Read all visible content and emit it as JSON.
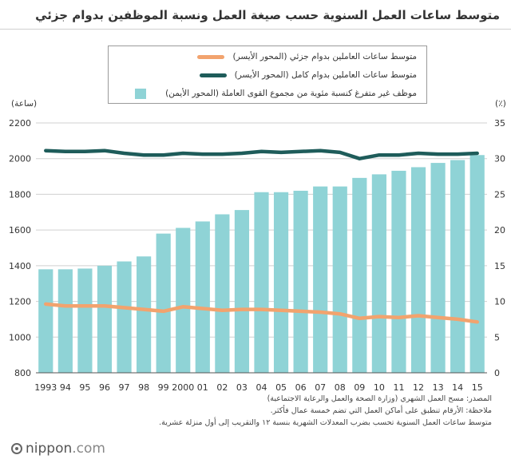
{
  "title": "متوسط ساعات العمل السنوية حسب صيغة العمل ونسبة الموظفين بدوام جزئي",
  "legend": {
    "part_time": "متوسط ساعات العاملين بدوام جزئي (المحور الأيسر)",
    "full_time": "متوسط ساعات العاملين بدوام كامل (المحور الأيسر)",
    "ratio": "موظف غير متفرغ كنسبة مئوية من مجموع القوى العاملة (المحور الأيمن)"
  },
  "units": {
    "left": "(ساعة)",
    "right": "(٪)"
  },
  "notes": {
    "source": "المصدر: مسح العمل الشهري (وزارة الصحة والعمل والرعاية الاجتماعية)",
    "note1": "ملاحظة: الأرقام تنطبق على أماكن العمل التي تضم خمسة عمال فأكثر.",
    "note2": "متوسط ساعات العمل السنوية تحسب بضرب المعدلات الشهرية بنسبة ١٢ والتقريب إلى أول منزلة عشرية."
  },
  "logo": {
    "name": "nippon",
    "suffix": ".com"
  },
  "colors": {
    "part_time": "#f2a36e",
    "full_time": "#1e5c5a",
    "ratio": "#8fd3d6",
    "grid": "#d0d0d0"
  },
  "chart_data": {
    "type": "bar",
    "categories": [
      "1993",
      "94",
      "95",
      "96",
      "97",
      "98",
      "99",
      "2000",
      "01",
      "02",
      "03",
      "04",
      "05",
      "06",
      "07",
      "08",
      "09",
      "10",
      "11",
      "12",
      "13",
      "14",
      "15"
    ],
    "ylim_left": [
      800,
      2200
    ],
    "ylim_right": [
      0,
      35
    ],
    "yticks_left": [
      800,
      1000,
      1200,
      1400,
      1600,
      1800,
      2000,
      2200
    ],
    "yticks_right": [
      0,
      5,
      10,
      15,
      20,
      25,
      30,
      35
    ],
    "grid": true,
    "series": [
      {
        "name": "موظف غير متفرغ كنسبة مئوية من مجموع القوى العاملة (المحور الأيمن)",
        "kind": "bar",
        "axis": "right",
        "values": [
          14.5,
          14.5,
          14.6,
          15.0,
          15.6,
          16.3,
          19.5,
          20.3,
          21.2,
          22.2,
          22.8,
          25.3,
          25.3,
          25.5,
          26.1,
          26.1,
          27.3,
          27.8,
          28.3,
          28.8,
          29.4,
          29.8,
          30.5
        ]
      },
      {
        "name": "متوسط ساعات العاملين بدوام كامل (المحور الأيسر)",
        "kind": "line",
        "axis": "left",
        "values": [
          2045,
          2040,
          2040,
          2045,
          2030,
          2020,
          2020,
          2030,
          2025,
          2025,
          2030,
          2040,
          2035,
          2040,
          2045,
          2035,
          2000,
          2020,
          2020,
          2030,
          2025,
          2025,
          2030
        ]
      },
      {
        "name": "متوسط ساعات العاملين بدوام جزئي (المحور الأيسر)",
        "kind": "line",
        "axis": "left",
        "values": [
          1185,
          1175,
          1175,
          1175,
          1165,
          1155,
          1145,
          1170,
          1160,
          1150,
          1155,
          1155,
          1150,
          1145,
          1140,
          1130,
          1105,
          1115,
          1110,
          1120,
          1110,
          1100,
          1085
        ]
      }
    ]
  }
}
